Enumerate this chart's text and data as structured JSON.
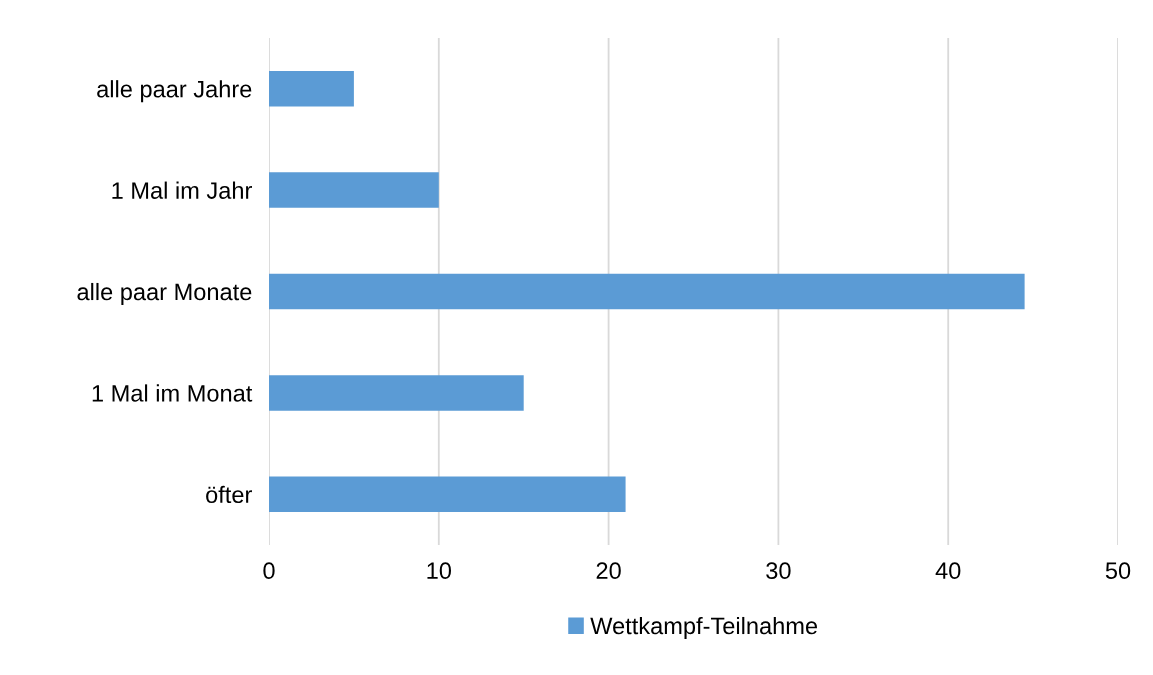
{
  "chart_data": {
    "type": "bar",
    "orientation": "horizontal",
    "categories": [
      "alle paar Jahre",
      "1 Mal im Jahr",
      "alle paar Monate",
      "1 Mal im Monat",
      "öfter"
    ],
    "series": [
      {
        "name": "Wettkampf-Teilnahme",
        "color": "#5b9bd5",
        "values": [
          5,
          10,
          44.5,
          15,
          21
        ]
      }
    ],
    "xlim": [
      0,
      50
    ],
    "xticks": [
      0,
      10,
      20,
      30,
      40,
      50
    ],
    "grid": "x",
    "legend": "bottom"
  }
}
